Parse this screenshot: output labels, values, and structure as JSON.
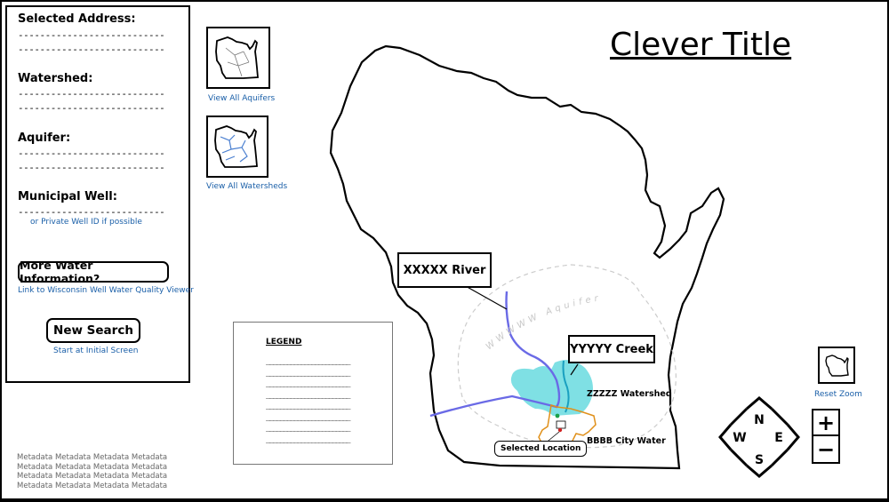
{
  "sidebar": {
    "selected_address": {
      "label": "Selected Address:",
      "lines": [
        "---------------------------",
        "---------------------------"
      ]
    },
    "watershed": {
      "label": "Watershed:",
      "lines": [
        "---------------------------",
        "---------------------------"
      ]
    },
    "aquifer": {
      "label": "Aquifer:",
      "lines": [
        "---------------------------",
        "---------------------------"
      ]
    },
    "municipal_well": {
      "label": "Municipal Well:",
      "lines": [
        "---------------------------"
      ],
      "note": "or Private Well ID if possible"
    },
    "more_info_button": "More Water Information?",
    "more_info_link": "Link to Wisconsin Well Water Quality Viewer",
    "new_search_button": "New Search",
    "new_search_link": "Start at Initial Screen"
  },
  "thumbnails": {
    "aquifers_link": "View All Aquifers",
    "watersheds_link": "View All Watersheds"
  },
  "title": "Clever Title",
  "legend": {
    "title": "LEGEND",
    "lines": [
      "________________________",
      "________________________",
      "________________________",
      "________________________",
      "________________________",
      "________________________",
      "________________________",
      "________________________"
    ]
  },
  "map": {
    "river_callout": "XXXXX River",
    "creek_callout": "YYYYY Creek",
    "aquifer_label": "WWWWW Aquifer",
    "watershed_label": "ZZZZZ Watershed",
    "city_label": "BBBB City Water",
    "selected_location": "Selected Location",
    "colors": {
      "river": "#6a6ae6",
      "creek": "#1aa0c0",
      "watershed_fill": "#7fe0e4",
      "city_outline": "#e0901a"
    }
  },
  "controls": {
    "reset_zoom": "Reset Zoom",
    "compass": {
      "n": "N",
      "e": "E",
      "s": "S",
      "w": "W"
    },
    "zoom_in": "+",
    "zoom_out": "−"
  },
  "metadata": [
    "Metadata Metadata Metadata Metadata",
    "Metadata Metadata Metadata Metadata",
    "Metadata Metadata Metadata Metadata",
    "Metadata Metadata Metadata Metadata"
  ]
}
